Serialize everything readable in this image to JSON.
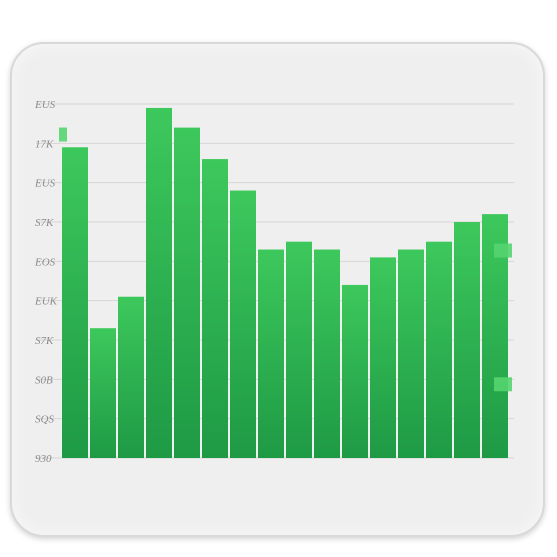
{
  "chart_data": {
    "type": "bar",
    "title": "",
    "xlabel": "",
    "ylabel": "",
    "y_tick_labels": [
      "930",
      "SQS",
      "S0B",
      "S7K",
      "EUK",
      "EOS",
      "S7K",
      "EUS",
      "17K",
      "EUS"
    ],
    "ylim": [
      0,
      9
    ],
    "grid": true,
    "legend": "none",
    "colors": {
      "bar_top": "#3dc85c",
      "bar_bottom": "#1e9a45",
      "card": "#efefef",
      "grid": "#d6d6d6"
    },
    "values": [
      7.9,
      3.3,
      4.1,
      8.9,
      8.4,
      7.6,
      6.8,
      5.3,
      5.5,
      5.3,
      4.4,
      5.1,
      5.3,
      5.5,
      6.0,
      6.2
    ],
    "accents": [
      {
        "bar_index": 0,
        "value": 8.3
      },
      {
        "bar_index": 15,
        "value": 5.3
      },
      {
        "bar_index": 15,
        "value": 1.9
      }
    ]
  }
}
